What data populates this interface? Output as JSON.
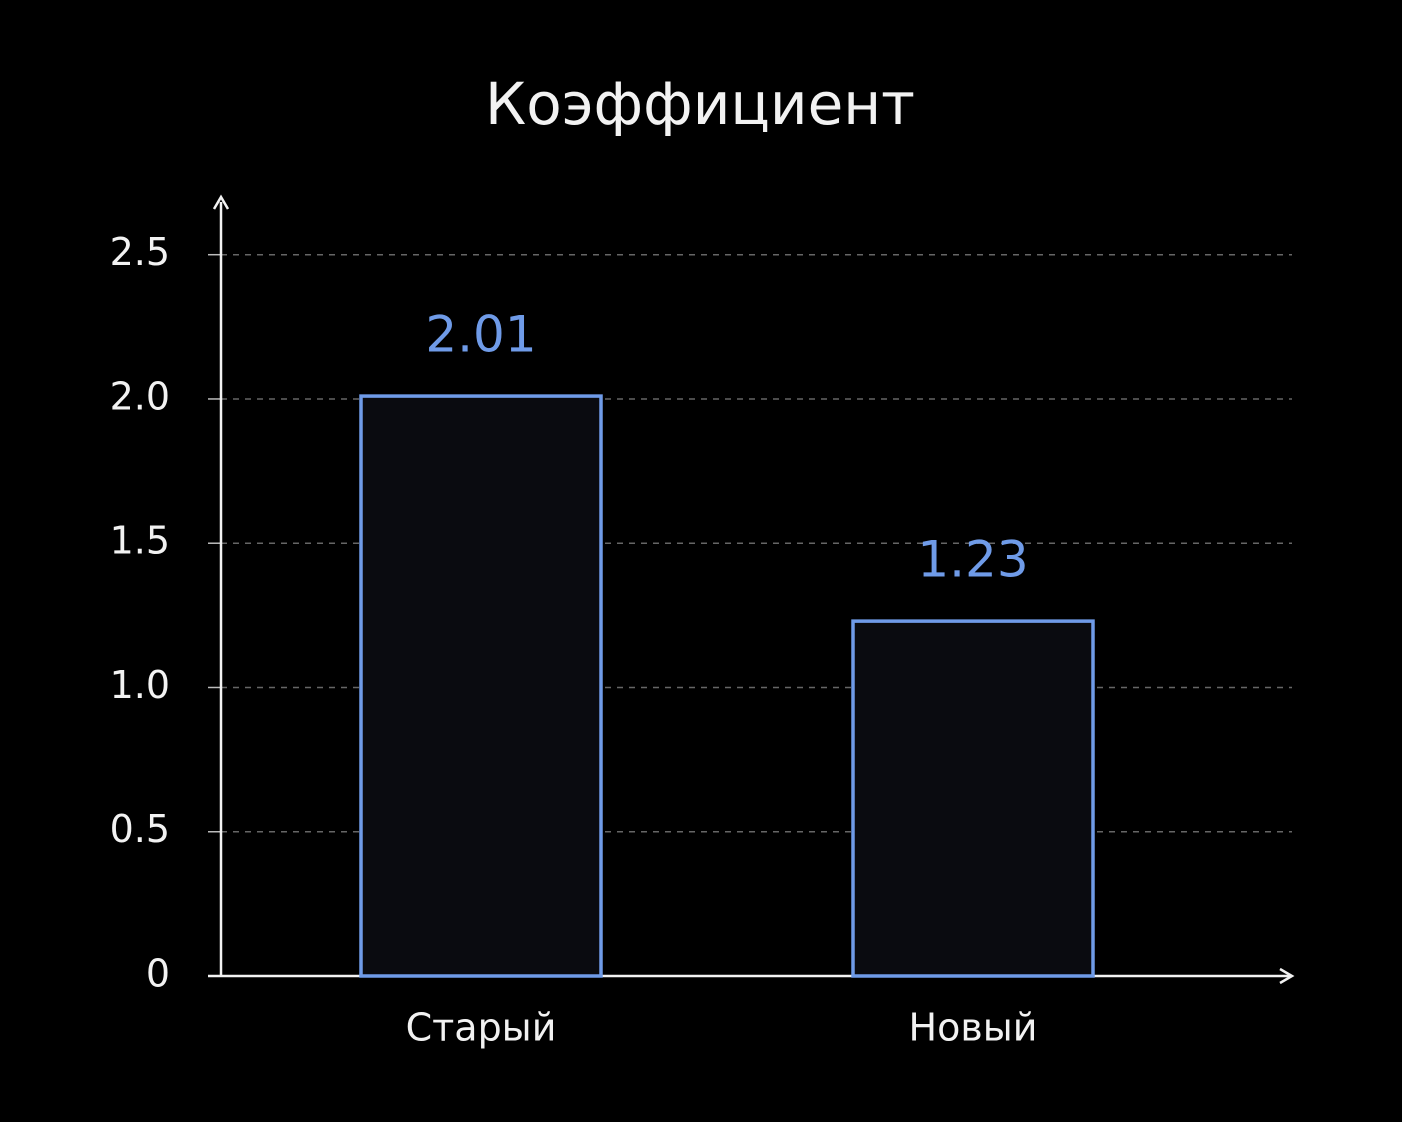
{
  "chart_data": {
    "type": "bar",
    "title": "Коэффициент",
    "categories": [
      "Старый",
      "Новый"
    ],
    "values": [
      2.01,
      1.23
    ],
    "color": "#6f9be8",
    "ylim": [
      0,
      2.7
    ],
    "yticks": [
      0,
      0.5,
      {
        "value": 1,
        "label": "1.0"
      },
      1.5,
      {
        "value": 2,
        "label": "2.0"
      },
      2.5
    ],
    "grid": true
  }
}
